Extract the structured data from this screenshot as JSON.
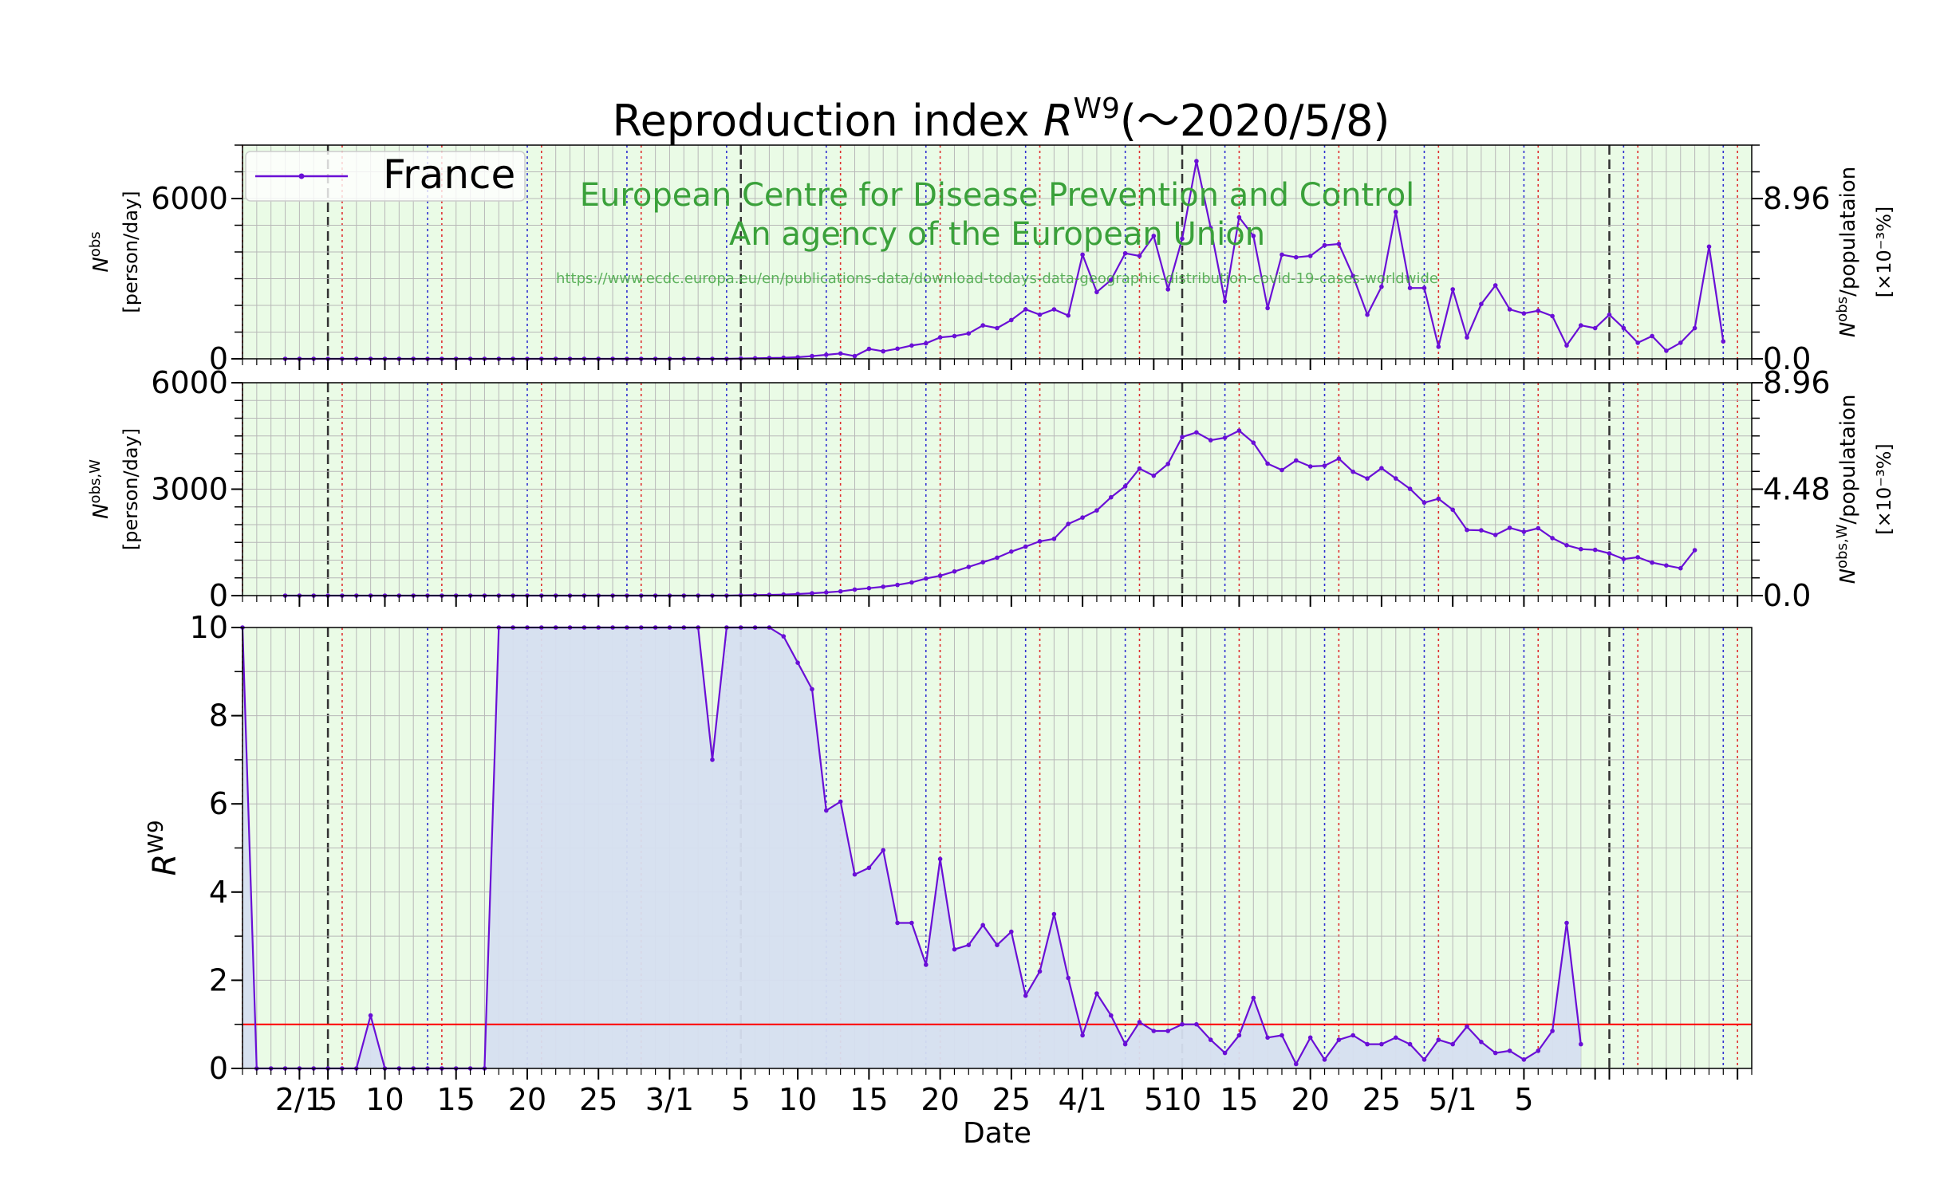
{
  "title": "Reproduction index R^W9(〜2020/5/8)",
  "title_parts": {
    "prefix": "Reproduction index ",
    "symbol": "R",
    "superscript": "W9",
    "suffix": "(〜2020/5/8)"
  },
  "legend": {
    "label": "France",
    "placement": "upper-left of top panel"
  },
  "watermark": {
    "line1": "European Centre for Disease Prevention and Control",
    "line2": "An agency of the European Union",
    "url": "https://www.ecdc.europa.eu/en/publications-data/download-todays-data-geographic-distribution-covid-19-cases-worldwide"
  },
  "xlabel": "Date",
  "x_ticks": [
    "2/1",
    "5",
    "10",
    "15",
    "20",
    "25",
    "3/1",
    "5",
    "10",
    "15",
    "20",
    "25",
    "4/1",
    "5",
    "10",
    "15",
    "20",
    "25",
    "5/1",
    "5"
  ],
  "colors": {
    "line": "#6a0fd6",
    "panel_bg": "#eafbe6",
    "fill": "#d6dff0",
    "grid": "#b8b8b8",
    "sunday_line": "#e03030",
    "saturday_line": "#3030d0",
    "month_line": "#333333",
    "reference_line": "#ff0000",
    "watermark": "#3aa13a"
  },
  "chart_data": [
    {
      "panel": "daily new cases",
      "type": "line",
      "x_start": "2020-01-29",
      "x_end": "2020-05-08",
      "ylabel_symbol": "N",
      "ylabel_sup": "obs",
      "ylabel_unit": "[person/day]",
      "ylim": [
        0,
        8000
      ],
      "yticks": [
        0,
        6000
      ],
      "right_ylabel_symbol": "N",
      "right_ylabel_sup": "obs",
      "right_ylabel_text": "/populataion",
      "right_ylabel_unit": "[×10⁻³%]",
      "right_ylim": [
        0,
        11.95
      ],
      "right_yticks": [
        "0.0",
        "8.96"
      ],
      "series": [
        {
          "name": "France",
          "values": [
            0,
            0,
            0,
            0,
            0,
            0,
            0,
            0,
            0,
            0,
            0,
            0,
            0,
            0,
            0,
            0,
            0,
            0,
            0,
            0,
            0,
            0,
            0,
            0,
            0,
            0,
            0,
            0,
            0,
            0,
            0,
            0,
            12,
            20,
            30,
            40,
            60,
            100,
            150,
            200,
            100,
            370,
            280,
            380,
            500,
            580,
            800,
            850,
            950,
            1250,
            1150,
            1450,
            1850,
            1650,
            1850,
            1620,
            3900,
            2500,
            2950,
            3950,
            3850,
            4600,
            2600,
            4500,
            7400,
            4900,
            2150,
            5300,
            4600,
            1900,
            3900,
            3800,
            3850,
            4250,
            4300,
            3100,
            1650,
            2700,
            5500,
            2650,
            2650,
            450,
            2600,
            800,
            2050,
            2750,
            1850,
            1700,
            1800,
            1600,
            500,
            1250,
            1150,
            1650,
            1150,
            600,
            850,
            300,
            600,
            1150,
            4200,
            650
          ]
        }
      ]
    },
    {
      "panel": "weekly-averaged cases",
      "type": "line",
      "x_start": "2020-01-29",
      "x_end": "2020-05-08",
      "ylabel_symbol": "N",
      "ylabel_sup": "obs,W",
      "ylabel_unit": "[person/day]",
      "ylim": [
        0,
        6000
      ],
      "yticks": [
        0,
        3000,
        6000
      ],
      "right_ylabel_symbol": "N",
      "right_ylabel_sup": "obs,W",
      "right_ylabel_text": "/populataion",
      "right_ylabel_unit": "[×10⁻³%]",
      "right_ylim": [
        0,
        8.96
      ],
      "right_yticks": [
        "0.0",
        "4.48",
        "8.96"
      ],
      "series": [
        {
          "name": "France",
          "values": [
            0,
            0,
            0,
            0,
            0,
            0,
            0,
            0,
            0,
            0,
            0,
            0,
            0,
            0,
            0,
            0,
            0,
            0,
            0,
            0,
            0,
            0,
            0,
            0,
            0,
            0,
            0,
            0,
            0,
            0,
            0,
            0,
            10,
            15,
            20,
            30,
            45,
            65,
            90,
            120,
            170,
            210,
            250,
            300,
            370,
            480,
            560,
            680,
            810,
            940,
            1070,
            1240,
            1380,
            1530,
            1600,
            2020,
            2200,
            2400,
            2770,
            3080,
            3580,
            3380,
            3710,
            4470,
            4600,
            4380,
            4450,
            4650,
            4310,
            3720,
            3540,
            3810,
            3640,
            3660,
            3860,
            3490,
            3300,
            3590,
            3300,
            3010,
            2620,
            2730,
            2420,
            1850,
            1840,
            1710,
            1910,
            1800,
            1900,
            1620,
            1420,
            1310,
            1290,
            1190,
            1030,
            1080,
            930,
            850,
            770,
            1280
          ]
        }
      ]
    },
    {
      "panel": "reproduction index",
      "type": "area",
      "x_start": "2020-01-26",
      "x_end": "2020-04-29",
      "ylabel_symbol": "R",
      "ylabel_sup": "W9",
      "ylim": [
        0,
        10
      ],
      "yticks": [
        0,
        2,
        4,
        6,
        8,
        10
      ],
      "reference_line": 1,
      "series": [
        {
          "name": "France",
          "values": [
            10,
            0,
            0,
            0,
            0,
            0,
            0,
            0,
            0,
            1.2,
            0,
            0,
            0,
            0,
            0,
            0,
            0,
            0,
            10,
            10,
            10,
            10,
            10,
            10,
            10,
            10,
            10,
            10,
            10,
            10,
            10,
            10,
            10,
            7.0,
            10,
            10,
            10,
            10,
            9.8,
            9.2,
            8.6,
            5.85,
            6.05,
            4.4,
            4.55,
            4.95,
            3.3,
            3.3,
            2.35,
            4.75,
            2.7,
            2.8,
            3.25,
            2.8,
            3.1,
            1.65,
            2.2,
            3.5,
            2.05,
            0.75,
            1.7,
            1.2,
            0.55,
            1.05,
            0.85,
            0.85,
            1.0,
            1.0,
            0.65,
            0.35,
            0.75,
            1.6,
            0.7,
            0.75,
            0.1,
            0.7,
            0.2,
            0.65,
            0.75,
            0.55,
            0.55,
            0.7,
            0.55,
            0.2,
            0.65,
            0.55,
            0.95,
            0.6,
            0.35,
            0.4,
            0.2,
            0.4,
            0.85,
            3.3,
            0.55
          ]
        }
      ]
    }
  ]
}
